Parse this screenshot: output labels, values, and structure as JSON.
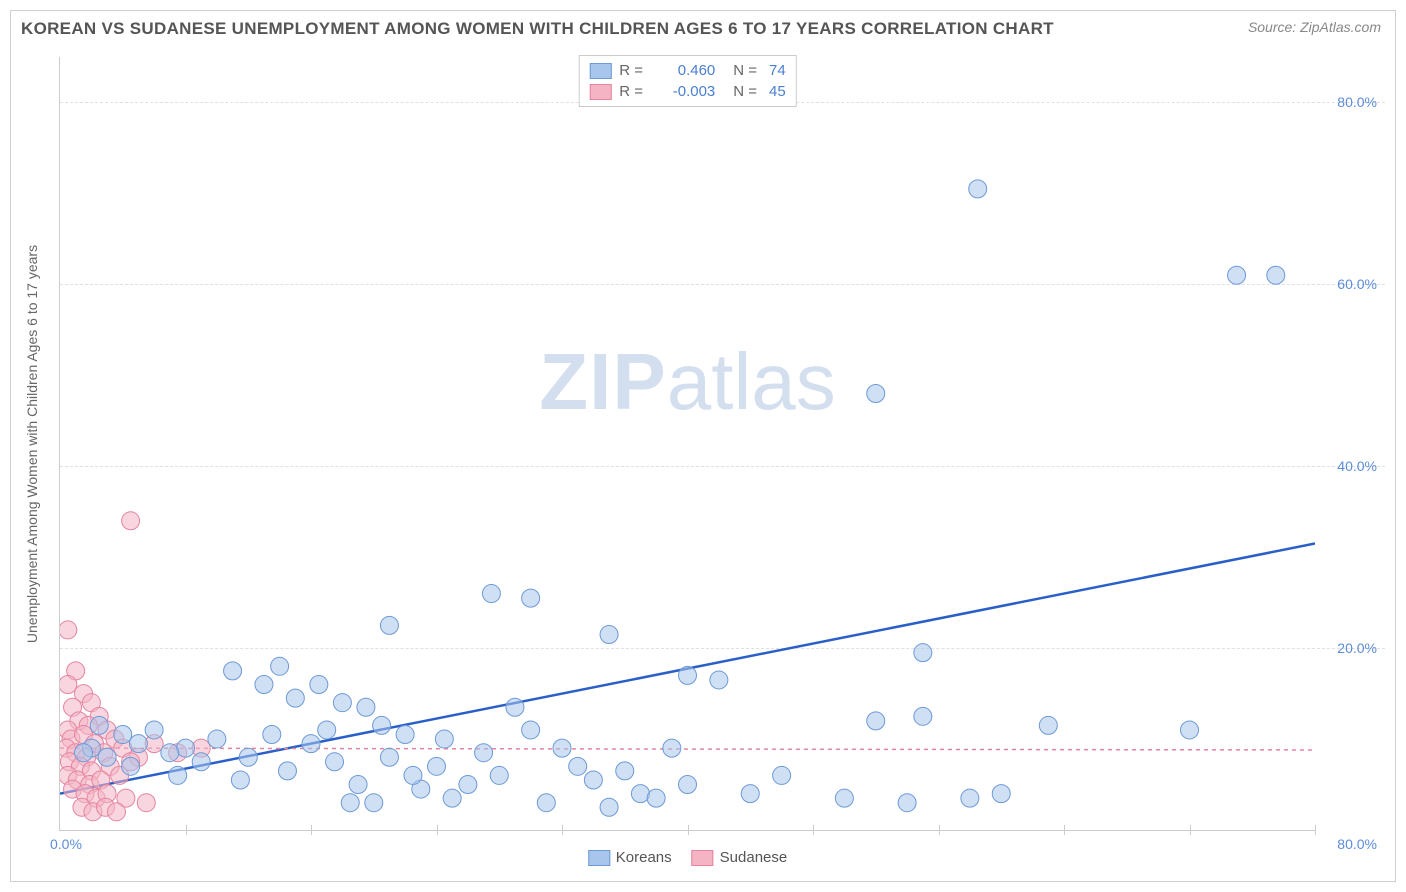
{
  "title": "KOREAN VS SUDANESE UNEMPLOYMENT AMONG WOMEN WITH CHILDREN AGES 6 TO 17 YEARS CORRELATION CHART",
  "source": "Source: ZipAtlas.com",
  "watermark_zip": "ZIP",
  "watermark_atlas": "atlas",
  "chart": {
    "type": "scatter",
    "ylabel": "Unemployment Among Women with Children Ages 6 to 17 years",
    "xlim": [
      0,
      80
    ],
    "ylim": [
      0,
      85
    ],
    "xtick_label_min": "0.0%",
    "xtick_label_max": "80.0%",
    "yticks": [
      20,
      40,
      60,
      80
    ],
    "ytick_labels": [
      "20.0%",
      "40.0%",
      "60.0%",
      "80.0%"
    ],
    "xticks_minor": [
      8,
      16,
      24,
      32,
      40,
      48,
      56,
      64,
      72,
      80
    ],
    "background_color": "#ffffff",
    "grid_color": "#e0e0e0",
    "axis_color": "#cccccc",
    "tick_label_color": "#5b8dd6",
    "series": [
      {
        "name": "Koreans",
        "label": "Koreans",
        "fill_color": "#a8c5eb",
        "stroke_color": "#6d9ad6",
        "marker_radius": 9,
        "fill_opacity": 0.55,
        "regression_line_color": "#2a5fc9",
        "regression_line_width": 2.5,
        "regression_line_dash": "none",
        "regression_y_at_x0": 4.0,
        "regression_y_at_xmax": 31.5,
        "r_value": "0.460",
        "n_value": "74",
        "points": [
          [
            58.5,
            70.5
          ],
          [
            75.0,
            61.0
          ],
          [
            77.5,
            61.0
          ],
          [
            52.0,
            48.0
          ],
          [
            27.5,
            26.0
          ],
          [
            30.0,
            25.5
          ],
          [
            35.0,
            21.5
          ],
          [
            21.0,
            22.5
          ],
          [
            55.0,
            19.5
          ],
          [
            40.0,
            17.0
          ],
          [
            42.0,
            16.5
          ],
          [
            11.0,
            17.5
          ],
          [
            13.0,
            16.0
          ],
          [
            14.0,
            18.0
          ],
          [
            15.0,
            14.5
          ],
          [
            16.5,
            16.0
          ],
          [
            17.0,
            11.0
          ],
          [
            18.0,
            14.0
          ],
          [
            19.5,
            13.5
          ],
          [
            22.0,
            10.5
          ],
          [
            24.0,
            7.0
          ],
          [
            24.5,
            10.0
          ],
          [
            26.0,
            5.0
          ],
          [
            27.0,
            8.5
          ],
          [
            28.0,
            6.0
          ],
          [
            30.0,
            11.0
          ],
          [
            31.0,
            3.0
          ],
          [
            32.0,
            9.0
          ],
          [
            33.0,
            7.0
          ],
          [
            34.0,
            5.5
          ],
          [
            35.0,
            2.5
          ],
          [
            36.0,
            6.5
          ],
          [
            37.0,
            4.0
          ],
          [
            38.0,
            3.5
          ],
          [
            39.0,
            9.0
          ],
          [
            40.0,
            5.0
          ],
          [
            44.0,
            4.0
          ],
          [
            46.0,
            6.0
          ],
          [
            50.0,
            3.5
          ],
          [
            52.0,
            12.0
          ],
          [
            54.0,
            3.0
          ],
          [
            55.0,
            12.5
          ],
          [
            58.0,
            3.5
          ],
          [
            60.0,
            4.0
          ],
          [
            63.0,
            11.5
          ],
          [
            72.0,
            11.0
          ],
          [
            12.0,
            8.0
          ],
          [
            13.5,
            10.5
          ],
          [
            14.5,
            6.5
          ],
          [
            16.0,
            9.5
          ],
          [
            17.5,
            7.5
          ],
          [
            19.0,
            5.0
          ],
          [
            20.0,
            3.0
          ],
          [
            21.0,
            8.0
          ],
          [
            23.0,
            4.5
          ],
          [
            25.0,
            3.5
          ],
          [
            8.0,
            9.0
          ],
          [
            9.0,
            7.5
          ],
          [
            10.0,
            10.0
          ],
          [
            11.5,
            5.5
          ],
          [
            6.0,
            11.0
          ],
          [
            7.0,
            8.5
          ],
          [
            7.5,
            6.0
          ],
          [
            5.0,
            9.5
          ],
          [
            3.0,
            8.0
          ],
          [
            4.0,
            10.5
          ],
          [
            4.5,
            7.0
          ],
          [
            2.0,
            9.0
          ],
          [
            2.5,
            11.5
          ],
          [
            1.5,
            8.5
          ],
          [
            18.5,
            3.0
          ],
          [
            22.5,
            6.0
          ],
          [
            20.5,
            11.5
          ],
          [
            29.0,
            13.5
          ]
        ]
      },
      {
        "name": "Sudanese",
        "label": "Sudanese",
        "fill_color": "#f4b4c4",
        "stroke_color": "#e584a0",
        "marker_radius": 9,
        "fill_opacity": 0.55,
        "regression_line_color": "#e584a0",
        "regression_line_width": 1.5,
        "regression_line_dash": "4,4",
        "regression_y_at_x0": 9.0,
        "regression_y_at_xmax": 8.8,
        "r_value": "-0.003",
        "n_value": "45",
        "points": [
          [
            4.5,
            34.0
          ],
          [
            0.5,
            22.0
          ],
          [
            1.0,
            17.5
          ],
          [
            0.5,
            16.0
          ],
          [
            1.5,
            15.0
          ],
          [
            0.8,
            13.5
          ],
          [
            2.0,
            14.0
          ],
          [
            1.2,
            12.0
          ],
          [
            2.5,
            12.5
          ],
          [
            0.5,
            11.0
          ],
          [
            1.8,
            11.5
          ],
          [
            3.0,
            11.0
          ],
          [
            0.7,
            10.0
          ],
          [
            1.5,
            10.5
          ],
          [
            2.2,
            9.5
          ],
          [
            3.5,
            10.0
          ],
          [
            0.4,
            9.0
          ],
          [
            1.0,
            8.5
          ],
          [
            1.7,
            8.0
          ],
          [
            2.8,
            8.5
          ],
          [
            4.0,
            9.0
          ],
          [
            5.0,
            8.0
          ],
          [
            6.0,
            9.5
          ],
          [
            7.5,
            8.5
          ],
          [
            9.0,
            9.0
          ],
          [
            0.6,
            7.5
          ],
          [
            1.3,
            7.0
          ],
          [
            2.0,
            6.5
          ],
          [
            3.2,
            7.0
          ],
          [
            4.5,
            7.5
          ],
          [
            0.5,
            6.0
          ],
          [
            1.1,
            5.5
          ],
          [
            1.9,
            5.0
          ],
          [
            2.6,
            5.5
          ],
          [
            3.8,
            6.0
          ],
          [
            0.8,
            4.5
          ],
          [
            1.6,
            4.0
          ],
          [
            2.3,
            3.5
          ],
          [
            3.0,
            4.0
          ],
          [
            4.2,
            3.5
          ],
          [
            5.5,
            3.0
          ],
          [
            1.4,
            2.5
          ],
          [
            2.1,
            2.0
          ],
          [
            2.9,
            2.5
          ],
          [
            3.6,
            2.0
          ]
        ]
      }
    ]
  },
  "legend_top": {
    "r_label": "R =",
    "n_label": "N ="
  }
}
